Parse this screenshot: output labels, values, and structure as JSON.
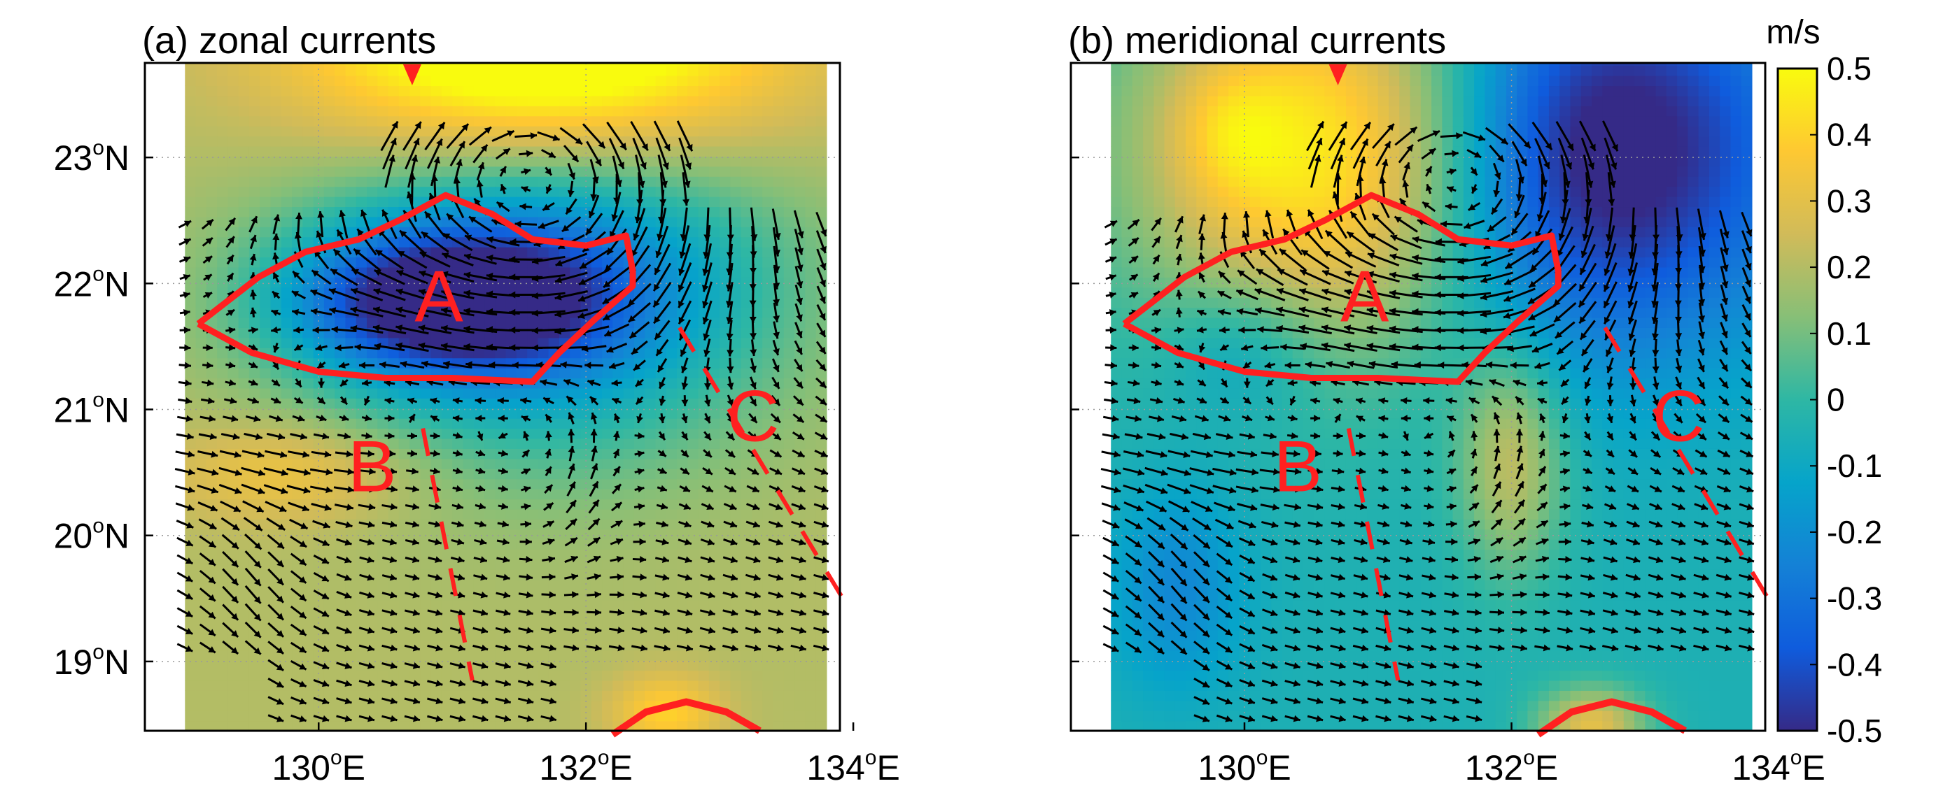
{
  "colors": {
    "outline": "#ff2020",
    "arrow": "#000000",
    "colormap": [
      "#352a87",
      "#0f5cdd",
      "#1481d6",
      "#06a4ca",
      "#2eb7a4",
      "#87bf77",
      "#d1bb59",
      "#fec832",
      "#f9fb0e"
    ]
  },
  "chart_data": [
    {
      "type": "heatmap",
      "panel": "(a)",
      "title": "(a) zonal currents",
      "variable": "zonal",
      "xlim": [
        128.7,
        133.9
      ],
      "ylim": [
        18.45,
        23.75
      ],
      "xticks": [
        {
          "value": 130,
          "label": "130",
          "sup": "o",
          "suffix": "E"
        },
        {
          "value": 132,
          "label": "132",
          "sup": "o",
          "suffix": "E"
        },
        {
          "value": 134,
          "label": "134",
          "sup": "o",
          "suffix": "E"
        }
      ],
      "yticks": [
        {
          "value": 23,
          "label": "23",
          "sup": "o",
          "suffix": "N"
        },
        {
          "value": 22,
          "label": "22",
          "sup": "o",
          "suffix": "N"
        },
        {
          "value": 21,
          "label": "21",
          "sup": "o",
          "suffix": "N"
        },
        {
          "value": 20,
          "label": "20",
          "sup": "o",
          "suffix": "N"
        },
        {
          "value": 19,
          "label": "19",
          "sup": "o",
          "suffix": "N"
        }
      ],
      "grid": true
    },
    {
      "type": "heatmap",
      "panel": "(b)",
      "title": "(b) meridional currents",
      "variable": "meridional",
      "xlim": [
        128.7,
        133.9
      ],
      "ylim": [
        18.45,
        23.75
      ],
      "xticks": [
        {
          "value": 130,
          "label": "130",
          "sup": "o",
          "suffix": "E"
        },
        {
          "value": 132,
          "label": "132",
          "sup": "o",
          "suffix": "E"
        },
        {
          "value": 134,
          "label": "134",
          "sup": "o",
          "suffix": "E"
        }
      ],
      "yticks": [],
      "grid": true
    }
  ],
  "current_field": {
    "eddy_center": [
      131.65,
      23.05
    ],
    "eddy_amplitude_ms": 0.5,
    "eddy_radius_deg": 1.1,
    "background_flow_ms": [
      0.2,
      -0.05
    ],
    "arrow_spacing_deg": [
      0.17,
      0.14
    ],
    "data_extent": {
      "west": 129.0,
      "east": 133.8,
      "south": 18.55,
      "north": 23.2
    }
  },
  "regions": {
    "A": {
      "label": "A",
      "label_pos": [
        130.9,
        21.9
      ],
      "polygon": [
        [
          129.1,
          21.68
        ],
        [
          129.55,
          22.05
        ],
        [
          129.9,
          22.25
        ],
        [
          130.3,
          22.35
        ],
        [
          130.6,
          22.5
        ],
        [
          130.95,
          22.7
        ],
        [
          131.3,
          22.55
        ],
        [
          131.6,
          22.35
        ],
        [
          132.0,
          22.3
        ],
        [
          132.3,
          22.38
        ],
        [
          132.35,
          22.1
        ],
        [
          132.35,
          21.98
        ],
        [
          132.05,
          21.7
        ],
        [
          131.8,
          21.45
        ],
        [
          131.6,
          21.22
        ],
        [
          131.0,
          21.25
        ],
        [
          130.5,
          21.25
        ],
        [
          130.0,
          21.3
        ],
        [
          129.5,
          21.45
        ],
        [
          129.1,
          21.68
        ]
      ]
    },
    "B": {
      "label": "B",
      "label_pos": [
        130.4,
        20.55
      ],
      "line": [
        [
          130.78,
          20.85
        ],
        [
          131.15,
          18.85
        ]
      ]
    },
    "C": {
      "label": "C",
      "label_pos": [
        133.25,
        20.95
      ],
      "line": [
        [
          132.7,
          21.65
        ],
        [
          133.95,
          19.45
        ]
      ]
    },
    "top_marker": [
      130.7,
      23.75
    ],
    "bottom_arc": [
      [
        132.2,
        18.42
      ],
      [
        132.45,
        18.6
      ],
      [
        132.75,
        18.68
      ],
      [
        133.05,
        18.6
      ],
      [
        133.3,
        18.45
      ]
    ]
  },
  "colorbar": {
    "unit": "m/s",
    "range": [
      -0.5,
      0.5
    ],
    "ticks": [
      {
        "value": 0.5,
        "label": "0.5"
      },
      {
        "value": 0.4,
        "label": "0.4"
      },
      {
        "value": 0.3,
        "label": "0.3"
      },
      {
        "value": 0.2,
        "label": "0.2"
      },
      {
        "value": 0.1,
        "label": "0.1"
      },
      {
        "value": 0.0,
        "label": "0"
      },
      {
        "value": -0.1,
        "label": "-0.1"
      },
      {
        "value": -0.2,
        "label": "-0.2"
      },
      {
        "value": -0.3,
        "label": "-0.3"
      },
      {
        "value": -0.4,
        "label": "-0.4"
      },
      {
        "value": -0.5,
        "label": "-0.5"
      }
    ]
  }
}
